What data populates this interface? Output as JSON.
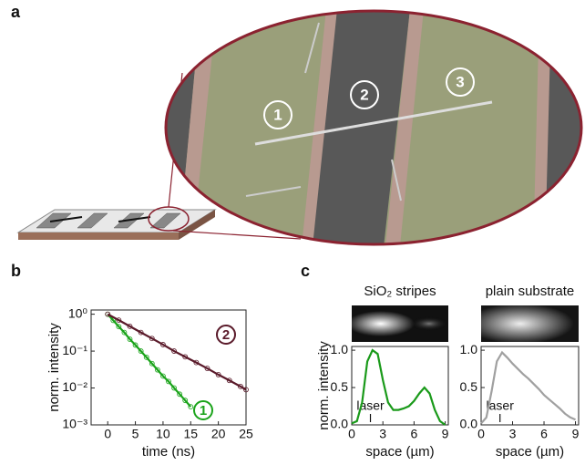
{
  "panel_labels": [
    "a",
    "b",
    "c"
  ],
  "image_labels": [
    "1",
    "2",
    "3"
  ],
  "chart_data": [
    {
      "type": "line",
      "log_y": true,
      "xlabel": "time (ns)",
      "ylabel": "norm. intensity",
      "xlim": [
        -3,
        25
      ],
      "xticks": [
        0,
        5,
        10,
        15,
        20,
        25
      ],
      "ylim": [
        0.001,
        1.3
      ],
      "yticks": [
        {
          "value": 1,
          "label": "10⁰"
        },
        {
          "value": 0.1,
          "label": "10⁻¹"
        },
        {
          "value": 0.01,
          "label": "10⁻²"
        },
        {
          "value": 0.001,
          "label": "10⁻³"
        }
      ],
      "series": [
        {
          "name": "1",
          "color": "#1aa31a",
          "x": [
            0,
            1,
            2,
            3,
            4,
            5,
            6,
            7,
            8,
            9,
            10,
            11,
            12,
            13,
            14,
            15
          ],
          "values": [
            1,
            0.68,
            0.46,
            0.32,
            0.21,
            0.146,
            0.1,
            0.068,
            0.046,
            0.031,
            0.021,
            0.015,
            0.01,
            0.0068,
            0.0046,
            0.0031
          ]
        },
        {
          "name": "2",
          "color": "#5a1a2a",
          "x": [
            0,
            2,
            4,
            6,
            8,
            10,
            12,
            14,
            16,
            18,
            20,
            22,
            24,
            25
          ],
          "values": [
            1,
            0.69,
            0.47,
            0.32,
            0.22,
            0.15,
            0.1,
            0.07,
            0.049,
            0.034,
            0.023,
            0.016,
            0.011,
            0.009
          ]
        }
      ]
    },
    {
      "type": "line",
      "title": "SiO₂ stripes",
      "xlabel": "space (µm)",
      "ylabel": "norm. intensity",
      "xlim": [
        0,
        9.3
      ],
      "xticks": [
        0,
        3,
        6,
        9
      ],
      "ylim": [
        0,
        1.05
      ],
      "yticks": [
        {
          "value": 0,
          "label": "0.0"
        },
        {
          "value": 0.5,
          "label": "0.5"
        },
        {
          "value": 1,
          "label": "1.0"
        }
      ],
      "annotation": {
        "text": "laser",
        "x": 1.8
      },
      "series": [
        {
          "name": "SiO₂ stripes",
          "color": "#1a9a1a",
          "x": [
            0,
            0.5,
            1,
            1.5,
            2,
            2.5,
            3,
            3.5,
            4,
            4.5,
            5,
            5.5,
            6,
            6.5,
            7,
            7.5,
            8,
            8.5,
            9
          ],
          "values": [
            0.02,
            0.05,
            0.3,
            0.85,
            1.0,
            0.95,
            0.6,
            0.3,
            0.2,
            0.2,
            0.22,
            0.25,
            0.32,
            0.42,
            0.5,
            0.42,
            0.2,
            0.05,
            0.0
          ]
        }
      ]
    },
    {
      "type": "line",
      "title": "plain substrate",
      "xlabel": "space (µm)",
      "xlim": [
        0,
        9.3
      ],
      "xticks": [
        0,
        3,
        6,
        9
      ],
      "ylim": [
        0,
        1.05
      ],
      "yticks": [
        {
          "value": 0,
          "label": "0.0"
        },
        {
          "value": 0.5,
          "label": "0.5"
        },
        {
          "value": 1,
          "label": "1.0"
        }
      ],
      "annotation": {
        "text": "laser",
        "x": 1.8
      },
      "series": [
        {
          "name": "plain substrate",
          "color": "#a0a0a0",
          "x": [
            0,
            0.5,
            1,
            1.5,
            2,
            2.5,
            3,
            3.5,
            4,
            4.5,
            5,
            5.5,
            6,
            6.5,
            7,
            7.5,
            8,
            8.5,
            9
          ],
          "values": [
            0.02,
            0.1,
            0.45,
            0.85,
            0.97,
            0.9,
            0.82,
            0.75,
            0.68,
            0.62,
            0.55,
            0.48,
            0.4,
            0.34,
            0.28,
            0.22,
            0.15,
            0.1,
            0.07
          ]
        }
      ]
    }
  ]
}
